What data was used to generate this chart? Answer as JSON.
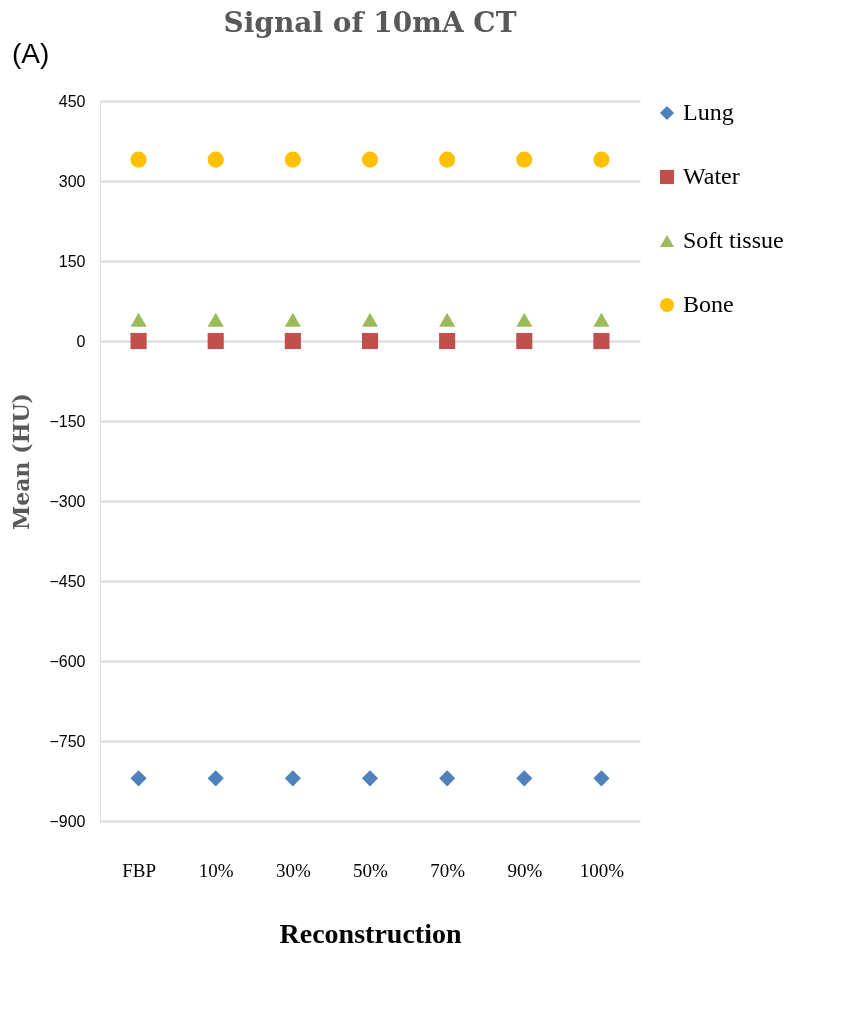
{
  "chart_data": {
    "type": "scatter",
    "title": "Signal of 10mA CT",
    "xlabel": "Reconstruction",
    "ylabel": "Mean (HU)",
    "annotations": [
      "(A)"
    ],
    "categories": [
      "FBP",
      "10%",
      "30%",
      "50%",
      "70%",
      "90%",
      "100%"
    ],
    "series": [
      {
        "name": "Lung",
        "color": "#4f81bd",
        "marker": "diamond",
        "values": [
          -820,
          -820,
          -820,
          -820,
          -820,
          -820,
          -820
        ]
      },
      {
        "name": "Water",
        "color": "#c0504d",
        "marker": "square",
        "values": [
          0,
          0,
          0,
          0,
          0,
          0,
          0
        ]
      },
      {
        "name": "Soft tissue",
        "color": "#9bbb59",
        "marker": "triangle",
        "values": [
          40,
          40,
          40,
          40,
          40,
          40,
          40
        ]
      },
      {
        "name": "Bone",
        "color": "#ffc000",
        "marker": "circle",
        "values": [
          340,
          340,
          340,
          340,
          340,
          340,
          340
        ]
      }
    ],
    "ylim": [
      -900,
      450
    ],
    "yticks": [
      -900,
      -750,
      -600,
      -450,
      -300,
      -150,
      0,
      150,
      300,
      450
    ],
    "grid": "y",
    "legend": "right"
  }
}
